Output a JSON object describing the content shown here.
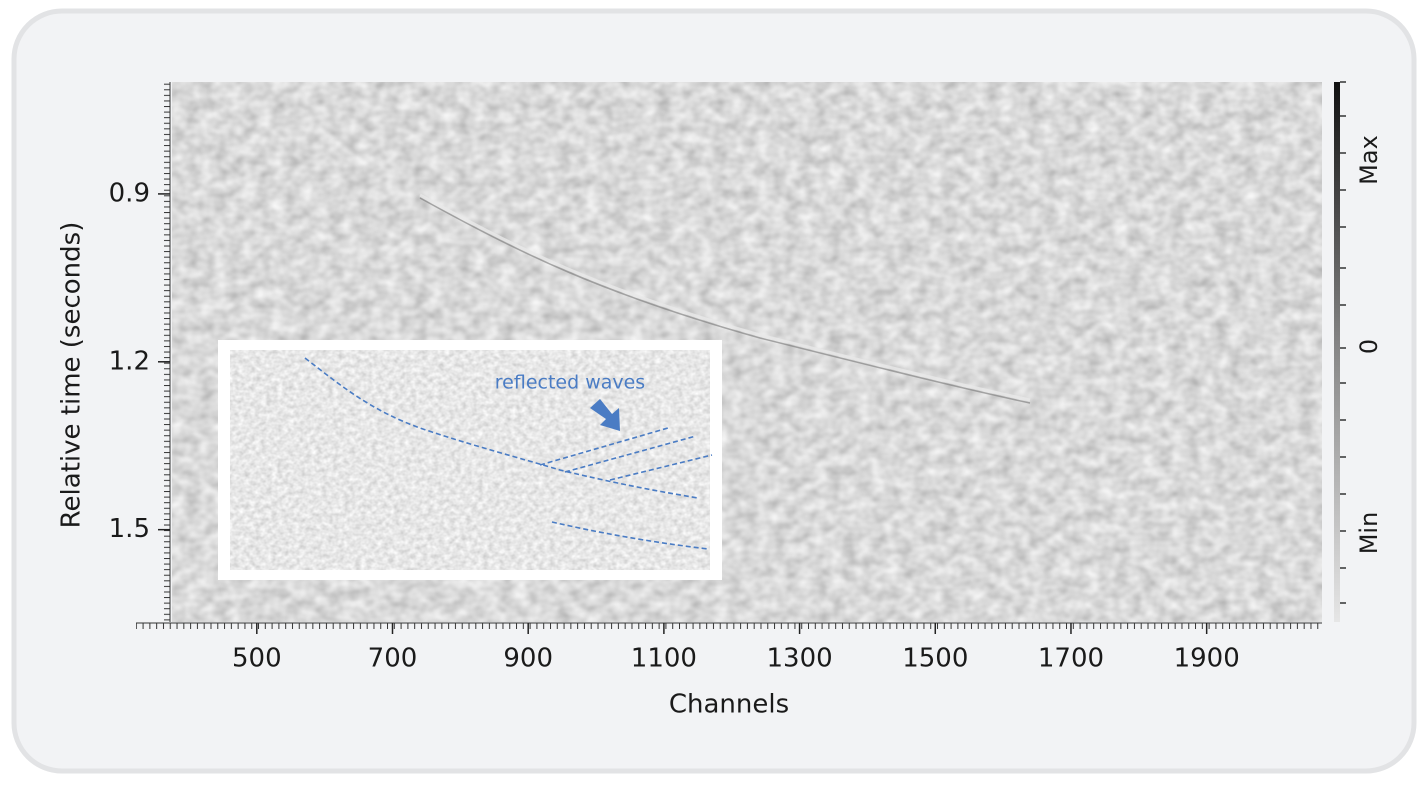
{
  "chart_data": {
    "type": "image",
    "x_label": "Channels",
    "y_label": "Relative time (seconds)",
    "xlim": [
      375,
      2070
    ],
    "ylim": [
      0.7,
      1.665
    ],
    "y_inverted": true,
    "xticks": [
      500,
      700,
      900,
      1100,
      1300,
      1500,
      1700,
      1900
    ],
    "yticks": [
      0.9,
      1.2,
      1.5
    ],
    "colorbar_labels": [
      "Max",
      "0",
      "Min"
    ],
    "inset": {
      "annotation": "reflected waves",
      "line_color": "#4a7cc4"
    }
  }
}
